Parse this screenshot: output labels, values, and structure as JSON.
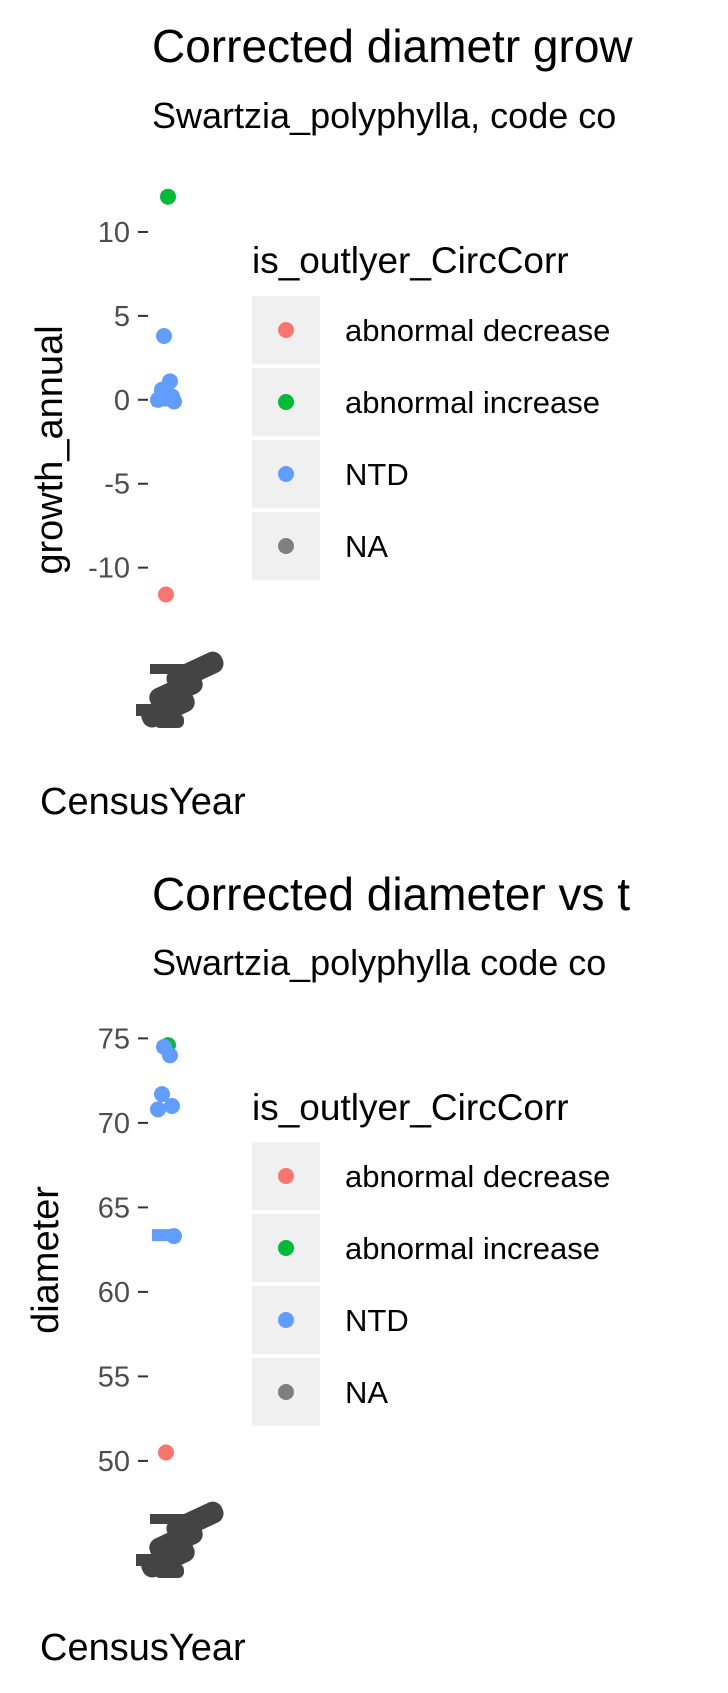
{
  "chart_data": [
    {
      "type": "scatter",
      "title": "Corrected diametr grow",
      "subtitle": "Swartzia_polyphylla, code co",
      "xlabel": "CensusYear",
      "ylabel": "growth_annual",
      "yticks": [
        10,
        5,
        0,
        -5,
        -10
      ],
      "ylim": [
        -15.8,
        12.5
      ],
      "grid": false,
      "legend": {
        "title": "is_outlyer_CircCorr",
        "placement": "right",
        "entries": [
          {
            "label": "abnormal decrease",
            "color": "#F8766D"
          },
          {
            "label": "abnormal increase",
            "color": "#00BA38"
          },
          {
            "label": "NTD",
            "color": "#619CFF"
          },
          {
            "label": "NA",
            "color": "#7F7F7F"
          }
        ]
      },
      "points": [
        {
          "category": "abnormal increase",
          "y": 12.1
        },
        {
          "category": "NTD",
          "y": 3.8
        },
        {
          "category": "NTD",
          "y": 1.1
        },
        {
          "category": "NTD",
          "y": 0.6
        },
        {
          "category": "NTD",
          "y": 0.2
        },
        {
          "category": "NTD",
          "y": 0.0
        },
        {
          "category": "NTD",
          "y": -0.1
        },
        {
          "category": "abnormal decrease",
          "y": -11.6
        }
      ]
    },
    {
      "type": "scatter",
      "title": "Corrected diameter vs t",
      "subtitle": "Swartzia_polyphylla code co",
      "xlabel": "CensusYear",
      "ylabel": "diameter",
      "yticks": [
        75,
        70,
        65,
        60,
        55,
        50
      ],
      "ylim": [
        46.8,
        75.2
      ],
      "grid": false,
      "legend": {
        "title": "is_outlyer_CircCorr",
        "placement": "right",
        "entries": [
          {
            "label": "abnormal decrease",
            "color": "#F8766D"
          },
          {
            "label": "abnormal increase",
            "color": "#00BA38"
          },
          {
            "label": "NTD",
            "color": "#619CFF"
          },
          {
            "label": "NA",
            "color": "#7F7F7F"
          }
        ]
      },
      "points": [
        {
          "category": "abnormal increase",
          "y": 74.6
        },
        {
          "category": "NTD",
          "y": 74.5
        },
        {
          "category": "NTD",
          "y": 74.0
        },
        {
          "category": "NTD",
          "y": 71.7
        },
        {
          "category": "NTD",
          "y": 71.0
        },
        {
          "category": "NTD",
          "y": 70.8
        },
        {
          "category": "NTD",
          "y": 63.3
        },
        {
          "category": "abnormal decrease",
          "y": 50.5
        }
      ]
    }
  ]
}
